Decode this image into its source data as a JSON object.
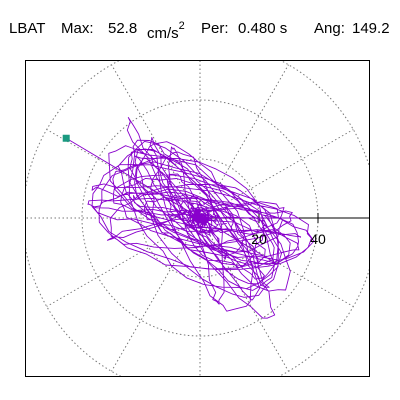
{
  "header": {
    "station": "LBAT",
    "max_label": "Max:",
    "max_value": "52.8",
    "max_unit": "cm/s",
    "max_unit_exp": "2",
    "per_label": "Per:",
    "per_value": "0.480 s",
    "ang_label": "Ang:",
    "ang_value": "149.2"
  },
  "chart_data": {
    "type": "scatter",
    "title": "",
    "xlabel": "",
    "ylabel": "",
    "grid": true,
    "radial_rings": [
      20,
      40,
      60
    ],
    "ring_tick_labels": [
      "20",
      "40"
    ],
    "max_radius": 52.8,
    "angle_deg": 149.2,
    "trace_color": "#8800cc",
    "marker_color": "#1a9a80",
    "grid_color": "#777777"
  }
}
